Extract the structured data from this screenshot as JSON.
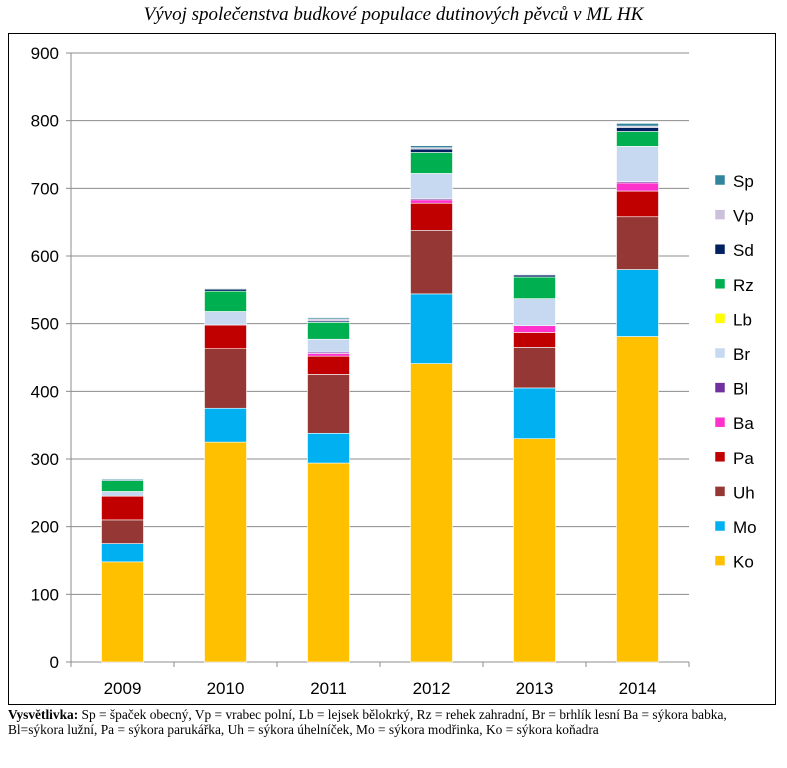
{
  "title": "Vývoj společenstva budkové populace dutinových pěvců v ML HK",
  "footnote": {
    "label": "Vysvětlivka:",
    "text": " Sp = špaček obecný, Vp = vrabec polní, Lb = lejsek bělokrký, Rz = rehek zahradní, Br = brhlík lesní Ba = sýkora babka, Bl=sýkora lužní,  Pa = sýkora parukářka, Uh = sýkora úhelníček, Mo = sýkora modřinka, Ko = sýkora koňadra"
  },
  "chart_data": {
    "type": "bar",
    "stacked": true,
    "categories": [
      "2009",
      "2010",
      "2011",
      "2012",
      "2013",
      "2014"
    ],
    "ylim": [
      0,
      900
    ],
    "yticks": [
      "0",
      "100",
      "200",
      "300",
      "400",
      "500",
      "600",
      "700",
      "800",
      "900"
    ],
    "grid": true,
    "legend_position": "right",
    "series": [
      {
        "name": "Ko",
        "color": "#FFC000",
        "values": [
          148,
          325,
          294,
          441,
          330,
          481
        ]
      },
      {
        "name": "Mo",
        "color": "#00B0F0",
        "values": [
          27,
          50,
          44,
          103,
          75,
          99
        ]
      },
      {
        "name": "Uh",
        "color": "#953735",
        "values": [
          35,
          88,
          87,
          94,
          60,
          78
        ]
      },
      {
        "name": "Pa",
        "color": "#C00000",
        "values": [
          35,
          35,
          27,
          40,
          22,
          38
        ]
      },
      {
        "name": "Ba",
        "color": "#FF33CC",
        "values": [
          0,
          0,
          4,
          5,
          10,
          12
        ]
      },
      {
        "name": "Bl",
        "color": "#7030A0",
        "values": [
          0,
          0,
          2,
          2,
          0,
          2
        ]
      },
      {
        "name": "Br",
        "color": "#C6D9F1",
        "values": [
          7,
          20,
          19,
          37,
          40,
          52
        ]
      },
      {
        "name": "Lb",
        "color": "#FFFF00",
        "values": [
          0,
          0,
          0,
          0,
          0,
          0
        ]
      },
      {
        "name": "Rz",
        "color": "#00B050",
        "values": [
          16,
          30,
          25,
          31,
          32,
          22
        ]
      },
      {
        "name": "Sd",
        "color": "#002060",
        "values": [
          0,
          3,
          2,
          5,
          3,
          6
        ]
      },
      {
        "name": "Vp",
        "color": "#CCC0DA",
        "values": [
          0,
          0,
          3,
          2,
          0,
          2
        ]
      },
      {
        "name": "Sp",
        "color": "#31849B",
        "values": [
          2,
          1,
          2,
          3,
          1,
          4
        ]
      }
    ]
  }
}
